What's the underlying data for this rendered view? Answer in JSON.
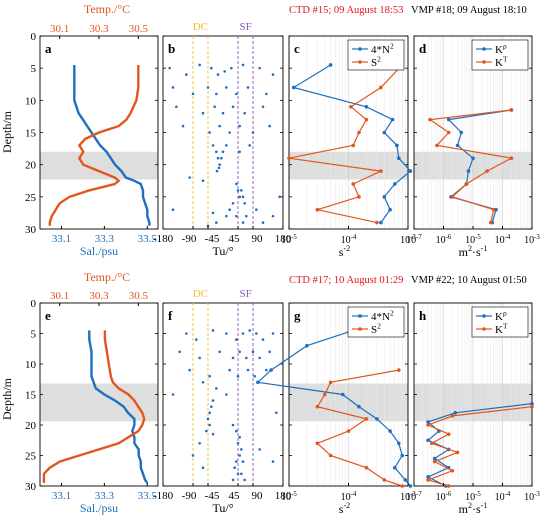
{
  "colors": {
    "blue": "#1f6fc0",
    "orange": "#e2561e",
    "shade": "#dedede",
    "dc": "#f2c12e",
    "sf": "#8a57b6",
    "red": "#e0141b"
  },
  "labels": {
    "depth": "Depth/m",
    "temp": "Temp./°C",
    "sal": "Sal./psu",
    "tu": "Tu/°",
    "s2unit": "s",
    "s2exp": "-2",
    "kunit": "m",
    "kexp1": "2",
    "kunit2": "·s",
    "kexp2": "-1",
    "dc": "DC",
    "sf": "SF"
  },
  "depth_ticks": [
    "0",
    "5",
    "10",
    "15",
    "20",
    "25",
    "30"
  ],
  "temp_ticks": [
    "30.1",
    "30.3",
    "30.5"
  ],
  "sal_ticks": [
    "33.1",
    "33.3",
    "33.5"
  ],
  "tu_ticks": [
    "-180",
    "-90",
    "-45",
    "45",
    "90",
    "180"
  ],
  "log_ticks_c": [
    {
      "b": "10",
      "e": "-5"
    },
    {
      "b": "10",
      "e": "-4"
    },
    {
      "b": "10",
      "e": "-3"
    }
  ],
  "log_ticks_d": [
    {
      "b": "10",
      "e": "-7"
    },
    {
      "b": "10",
      "e": "-6"
    },
    {
      "b": "10",
      "e": "-5"
    },
    {
      "b": "10",
      "e": "-4"
    },
    {
      "b": "10",
      "e": "-3"
    }
  ],
  "rows": [
    {
      "ctd_title": "CTD #15; 09 August 18:53",
      "vmp_title": "VMP #18; 09 August 18:10",
      "letters": [
        "a",
        "b",
        "c",
        "d"
      ],
      "legend_c": [
        {
          "b": "4*N",
          "e": "2"
        },
        {
          "b": "S",
          "e": "2"
        }
      ],
      "legend_d": [
        {
          "b": "K",
          "e": "ρ"
        },
        {
          "b": "K",
          "e": "T"
        }
      ]
    },
    {
      "ctd_title": "CTD #17; 10 August 01:29",
      "vmp_title": "VMP #22; 10 August 01:50",
      "letters": [
        "e",
        "f",
        "g",
        "h"
      ],
      "legend_c": [
        {
          "b": "4*N",
          "e": "2"
        },
        {
          "b": "S",
          "e": "2"
        }
      ],
      "legend_d": [
        {
          "b": "K",
          "e": "ρ"
        },
        {
          "b": "K",
          "e": "T"
        }
      ]
    }
  ],
  "chart_data": [
    {
      "panel": "a",
      "type": "line",
      "ylim": [
        0,
        30
      ],
      "sal_lim": [
        33.0,
        33.55
      ],
      "temp_lim": [
        30.0,
        30.6
      ],
      "shade": [
        18,
        22.3
      ],
      "series": [
        {
          "axis": "sal",
          "depth": [
            4.5,
            6,
            8,
            10,
            12,
            13,
            14,
            15,
            16,
            17,
            18,
            19,
            20,
            21,
            22,
            22.5,
            23,
            24,
            25,
            26,
            27,
            28,
            29,
            29.5
          ],
          "values": [
            33.16,
            33.16,
            33.16,
            33.16,
            33.18,
            33.2,
            33.22,
            33.24,
            33.26,
            33.28,
            33.31,
            33.33,
            33.35,
            33.38,
            33.4,
            33.44,
            33.47,
            33.48,
            33.48,
            33.49,
            33.5,
            33.5,
            33.51,
            33.51
          ]
        },
        {
          "axis": "temp",
          "depth": [
            4.5,
            6,
            8,
            10,
            12,
            13,
            14,
            15,
            16,
            17,
            18,
            19,
            20,
            21,
            22,
            22.5,
            23,
            24,
            25,
            26,
            27,
            28,
            29,
            29.5
          ],
          "values": [
            30.5,
            30.5,
            30.5,
            30.49,
            30.46,
            30.44,
            30.4,
            30.3,
            30.23,
            30.2,
            30.22,
            30.2,
            30.22,
            30.3,
            30.38,
            30.4,
            30.38,
            30.25,
            30.15,
            30.1,
            30.08,
            30.06,
            30.05,
            30.05
          ]
        }
      ]
    },
    {
      "panel": "b",
      "type": "scatter",
      "ylim": [
        0,
        30
      ],
      "xlim": [
        -180,
        180
      ],
      "dc": -60,
      "sf": 70,
      "points": [
        [
          -160,
          5
        ],
        [
          -110,
          6
        ],
        [
          -70,
          4.5
        ],
        [
          -35,
          5
        ],
        [
          -15,
          6
        ],
        [
          5,
          5.5
        ],
        [
          25,
          5
        ],
        [
          60,
          4.5
        ],
        [
          110,
          5
        ],
        [
          150,
          6
        ],
        [
          -150,
          8
        ],
        [
          -90,
          9
        ],
        [
          -45,
          8
        ],
        [
          -20,
          9
        ],
        [
          10,
          8
        ],
        [
          40,
          9
        ],
        [
          75,
          8
        ],
        [
          130,
          9
        ],
        [
          -140,
          11
        ],
        [
          -60,
          12
        ],
        [
          -25,
          11
        ],
        [
          0,
          12
        ],
        [
          30,
          11
        ],
        [
          65,
          12
        ],
        [
          120,
          11
        ],
        [
          -120,
          14
        ],
        [
          -40,
          15
        ],
        [
          -10,
          14
        ],
        [
          20,
          15
        ],
        [
          50,
          14
        ],
        [
          90,
          15
        ],
        [
          140,
          14
        ],
        [
          -30,
          17
        ],
        [
          -20,
          18
        ],
        [
          -15,
          19
        ],
        [
          -10,
          20
        ],
        [
          -12,
          20.5
        ],
        [
          -18,
          21
        ],
        [
          -5,
          19
        ],
        [
          0,
          18
        ],
        [
          10,
          17
        ],
        [
          50,
          18
        ],
        [
          80,
          17
        ],
        [
          -100,
          22
        ],
        [
          -60,
          22.5
        ],
        [
          40,
          23
        ],
        [
          45,
          24
        ],
        [
          50,
          25
        ],
        [
          55,
          24
        ],
        [
          60,
          25
        ],
        [
          65,
          26
        ],
        [
          30,
          26
        ],
        [
          20,
          27
        ],
        [
          10,
          28
        ],
        [
          40,
          28
        ],
        [
          70,
          28
        ],
        [
          100,
          27
        ],
        [
          -20,
          29
        ],
        [
          60,
          29
        ],
        [
          120,
          29
        ],
        [
          150,
          28
        ],
        [
          -150,
          27
        ],
        [
          -30,
          27.5
        ],
        [
          -45,
          29.5
        ],
        [
          170,
          25
        ]
      ]
    },
    {
      "panel": "c",
      "type": "line",
      "xscale": "log",
      "xlim": [
        1e-05,
        0.001
      ],
      "ylim": [
        0,
        30
      ],
      "shade": [
        18,
        22.3
      ],
      "series": [
        {
          "name": "4*N2",
          "depth": [
            4.5,
            8,
            11,
            13,
            15,
            17,
            19,
            21,
            23,
            25,
            27,
            29
          ],
          "values": [
            5e-05,
            1.2e-05,
            0.0002,
            0.00055,
            0.0004,
            0.00065,
            0.0007,
            0.0011,
            0.0006,
            0.0004,
            0.0005,
            0.00035
          ]
        },
        {
          "name": "S2",
          "depth": [
            4.5,
            8,
            11,
            13,
            15,
            17,
            19,
            21,
            23,
            25,
            27,
            29
          ],
          "values": [
            0.0008,
            0.00035,
            0.00011,
            0.0002,
            0.00015,
            0.00012,
            1e-05,
            0.00035,
            0.00012,
            0.00015,
            3e-05,
            0.0003
          ]
        }
      ]
    },
    {
      "panel": "d",
      "type": "line",
      "xscale": "log",
      "xlim": [
        1e-07,
        0.001
      ],
      "ylim": [
        0,
        30
      ],
      "shade": [
        18,
        22.3
      ],
      "series": [
        {
          "name": "Kρ",
          "depth": [
            11.5,
            13,
            15,
            17,
            19,
            21,
            23,
            25,
            27,
            29
          ],
          "values": [
            0.0002,
            1.5e-06,
            4e-06,
            3e-06,
            1e-05,
            7e-06,
            6e-06,
            1.8e-06,
            6e-05,
            4.5e-05
          ]
        },
        {
          "name": "KT",
          "depth": [
            11.5,
            13,
            15,
            17,
            19,
            21,
            23,
            25,
            27,
            29
          ],
          "values": [
            0.0002,
            3.5e-07,
            1.5e-06,
            6e-07,
            0.0002,
            3e-05,
            6e-06,
            2e-06,
            5e-05,
            4e-05
          ]
        }
      ]
    },
    {
      "panel": "e",
      "type": "line",
      "ylim": [
        0,
        30
      ],
      "sal_lim": [
        33.0,
        33.55
      ],
      "temp_lim": [
        30.0,
        30.6
      ],
      "shade": [
        13.2,
        19.4
      ],
      "series": [
        {
          "axis": "sal",
          "depth": [
            4.5,
            6,
            8,
            10,
            12,
            13,
            14,
            15,
            16,
            17,
            18,
            19,
            20,
            21,
            22,
            23,
            24,
            25,
            26,
            27,
            28,
            29,
            29.5
          ],
          "values": [
            33.23,
            33.23,
            33.24,
            33.24,
            33.24,
            33.25,
            33.26,
            33.3,
            33.35,
            33.39,
            33.41,
            33.44,
            33.44,
            33.43,
            33.44,
            33.44,
            33.46,
            33.46,
            33.47,
            33.47,
            33.48,
            33.49,
            33.5
          ]
        },
        {
          "axis": "temp",
          "depth": [
            4.5,
            6,
            8,
            10,
            12,
            13,
            14,
            15,
            16,
            17,
            18,
            19,
            20,
            21,
            22,
            23,
            24,
            25,
            26,
            27,
            28,
            29,
            29.5
          ],
          "values": [
            30.33,
            30.33,
            30.34,
            30.35,
            30.36,
            30.37,
            30.4,
            30.45,
            30.48,
            30.5,
            30.52,
            30.53,
            30.52,
            30.5,
            30.45,
            30.4,
            30.3,
            30.2,
            30.1,
            30.05,
            30.02,
            30.02,
            30.02
          ]
        }
      ]
    },
    {
      "panel": "f",
      "type": "scatter",
      "ylim": [
        0,
        30
      ],
      "xlim": [
        -180,
        180
      ],
      "dc": -60,
      "sf": 70,
      "points": [
        [
          -110,
          5
        ],
        [
          -80,
          6
        ],
        [
          -30,
          4.5
        ],
        [
          10,
          5
        ],
        [
          40,
          6
        ],
        [
          60,
          5
        ],
        [
          80,
          4.5
        ],
        [
          100,
          5
        ],
        [
          120,
          6
        ],
        [
          150,
          5
        ],
        [
          -130,
          8
        ],
        [
          -70,
          9
        ],
        [
          -10,
          8
        ],
        [
          30,
          9
        ],
        [
          50,
          8
        ],
        [
          70,
          9
        ],
        [
          90,
          8
        ],
        [
          110,
          9
        ],
        [
          140,
          8
        ],
        [
          -100,
          11
        ],
        [
          -40,
          12
        ],
        [
          20,
          11
        ],
        [
          45,
          12
        ],
        [
          75,
          11
        ],
        [
          95,
          12
        ],
        [
          130,
          11
        ],
        [
          -60,
          13
        ],
        [
          -20,
          14
        ],
        [
          10,
          15
        ],
        [
          -30,
          16
        ],
        [
          -35,
          17
        ],
        [
          -40,
          18
        ],
        [
          -45,
          19
        ],
        [
          -40,
          20
        ],
        [
          -50,
          21
        ],
        [
          -30,
          21.5
        ],
        [
          30,
          20
        ],
        [
          40,
          21
        ],
        [
          50,
          22
        ],
        [
          45,
          23
        ],
        [
          55,
          24
        ],
        [
          50,
          25
        ],
        [
          40,
          26
        ],
        [
          60,
          26
        ],
        [
          35,
          27
        ],
        [
          45,
          28
        ],
        [
          55,
          28
        ],
        [
          30,
          29
        ],
        [
          65,
          29
        ],
        [
          -70,
          23
        ],
        [
          -90,
          25
        ],
        [
          -60,
          27
        ],
        [
          110,
          24
        ],
        [
          150,
          26
        ],
        [
          -150,
          15
        ],
        [
          160,
          18
        ]
      ]
    },
    {
      "panel": "g",
      "type": "line",
      "xscale": "log",
      "xlim": [
        1e-05,
        0.001
      ],
      "ylim": [
        0,
        30
      ],
      "shade": [
        13.2,
        19.4
      ],
      "series": [
        {
          "name": "4*N2",
          "depth": [
            4.5,
            7,
            11,
            13,
            15,
            17,
            19,
            21,
            23,
            25,
            27,
            29,
            30
          ],
          "values": [
            0.00012,
            2e-05,
            5e-06,
            3e-06,
            8e-05,
            0.00015,
            0.0003,
            0.0005,
            0.0007,
            0.0008,
            0.0006,
            0.0009,
            0.0011
          ]
        },
        {
          "name": "S2",
          "depth": [
            11,
            13,
            15,
            17,
            19,
            21,
            23,
            25,
            27,
            29,
            30
          ],
          "values": [
            0.0007,
            5e-05,
            4e-05,
            3e-05,
            0.0002,
            0.0001,
            3e-05,
            5e-05,
            0.0002,
            0.0004,
            0.0008
          ]
        }
      ]
    },
    {
      "panel": "h",
      "type": "line",
      "xscale": "log",
      "xlim": [
        1e-07,
        0.001
      ],
      "ylim": [
        0,
        30
      ],
      "shade": [
        13.2,
        19.4
      ],
      "series": [
        {
          "name": "Kρ",
          "depth": [
            16.5,
            18,
            19.5,
            21,
            22.5,
            24,
            25.5,
            27,
            28.5,
            30
          ],
          "values": [
            0.001,
            2.5e-06,
            3e-07,
            7e-07,
            3e-07,
            1.5e-06,
            5e-07,
            1.5e-06,
            3e-07,
            1.2e-06
          ]
        },
        {
          "name": "KT",
          "depth": [
            17,
            18.5,
            20,
            21.5,
            23,
            24.5,
            26,
            27.5,
            29,
            30
          ],
          "values": [
            0.001,
            2e-06,
            3e-07,
            1.5e-06,
            4e-07,
            3e-06,
            5e-07,
            2e-06,
            3e-07,
            1.5e-06
          ]
        }
      ]
    }
  ]
}
